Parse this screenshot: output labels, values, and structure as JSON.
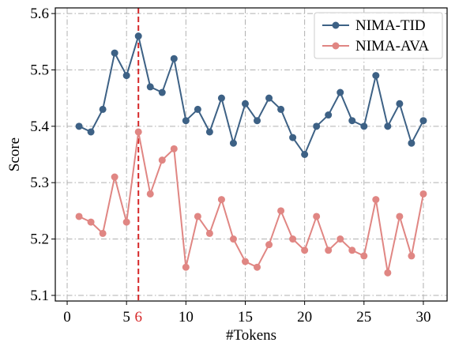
{
  "chart_data": {
    "type": "line",
    "xlabel": "#Tokens",
    "ylabel": "Score",
    "xlim": [
      -1,
      32
    ],
    "ylim": [
      5.09,
      5.61
    ],
    "xticks": [
      0,
      5,
      10,
      15,
      20,
      25,
      30
    ],
    "xtick_labels": [
      "0",
      "5",
      "10",
      "15",
      "20",
      "25",
      "30"
    ],
    "yticks": [
      5.1,
      5.2,
      5.3,
      5.4,
      5.5,
      5.6
    ],
    "ytick_labels": [
      "5.1",
      "5.2",
      "5.3",
      "5.4",
      "5.5",
      "5.6"
    ],
    "grid": true,
    "legend_position": "top-right",
    "highlight": {
      "x": 6,
      "label": "6",
      "color": "#d62728"
    },
    "x": [
      1,
      2,
      3,
      4,
      5,
      6,
      7,
      8,
      9,
      10,
      11,
      12,
      13,
      14,
      15,
      16,
      17,
      18,
      19,
      20,
      21,
      22,
      23,
      24,
      25,
      26,
      27,
      28,
      29,
      30
    ],
    "series": [
      {
        "name": "NIMA-TID",
        "color": "#3d6185",
        "values": [
          5.4,
          5.39,
          5.43,
          5.53,
          5.49,
          5.56,
          5.47,
          5.46,
          5.52,
          5.41,
          5.43,
          5.39,
          5.45,
          5.37,
          5.44,
          5.41,
          5.45,
          5.43,
          5.38,
          5.35,
          5.4,
          5.42,
          5.46,
          5.41,
          5.4,
          5.49,
          5.4,
          5.44,
          5.37,
          5.41
        ]
      },
      {
        "name": "NIMA-AVA",
        "color": "#e08683",
        "values": [
          5.24,
          5.23,
          5.21,
          5.31,
          5.23,
          5.39,
          5.28,
          5.34,
          5.36,
          5.15,
          5.24,
          5.21,
          5.27,
          5.2,
          5.16,
          5.15,
          5.19,
          5.25,
          5.2,
          5.18,
          5.24,
          5.18,
          5.2,
          5.18,
          5.17,
          5.27,
          5.14,
          5.24,
          5.17,
          5.28
        ]
      }
    ]
  }
}
